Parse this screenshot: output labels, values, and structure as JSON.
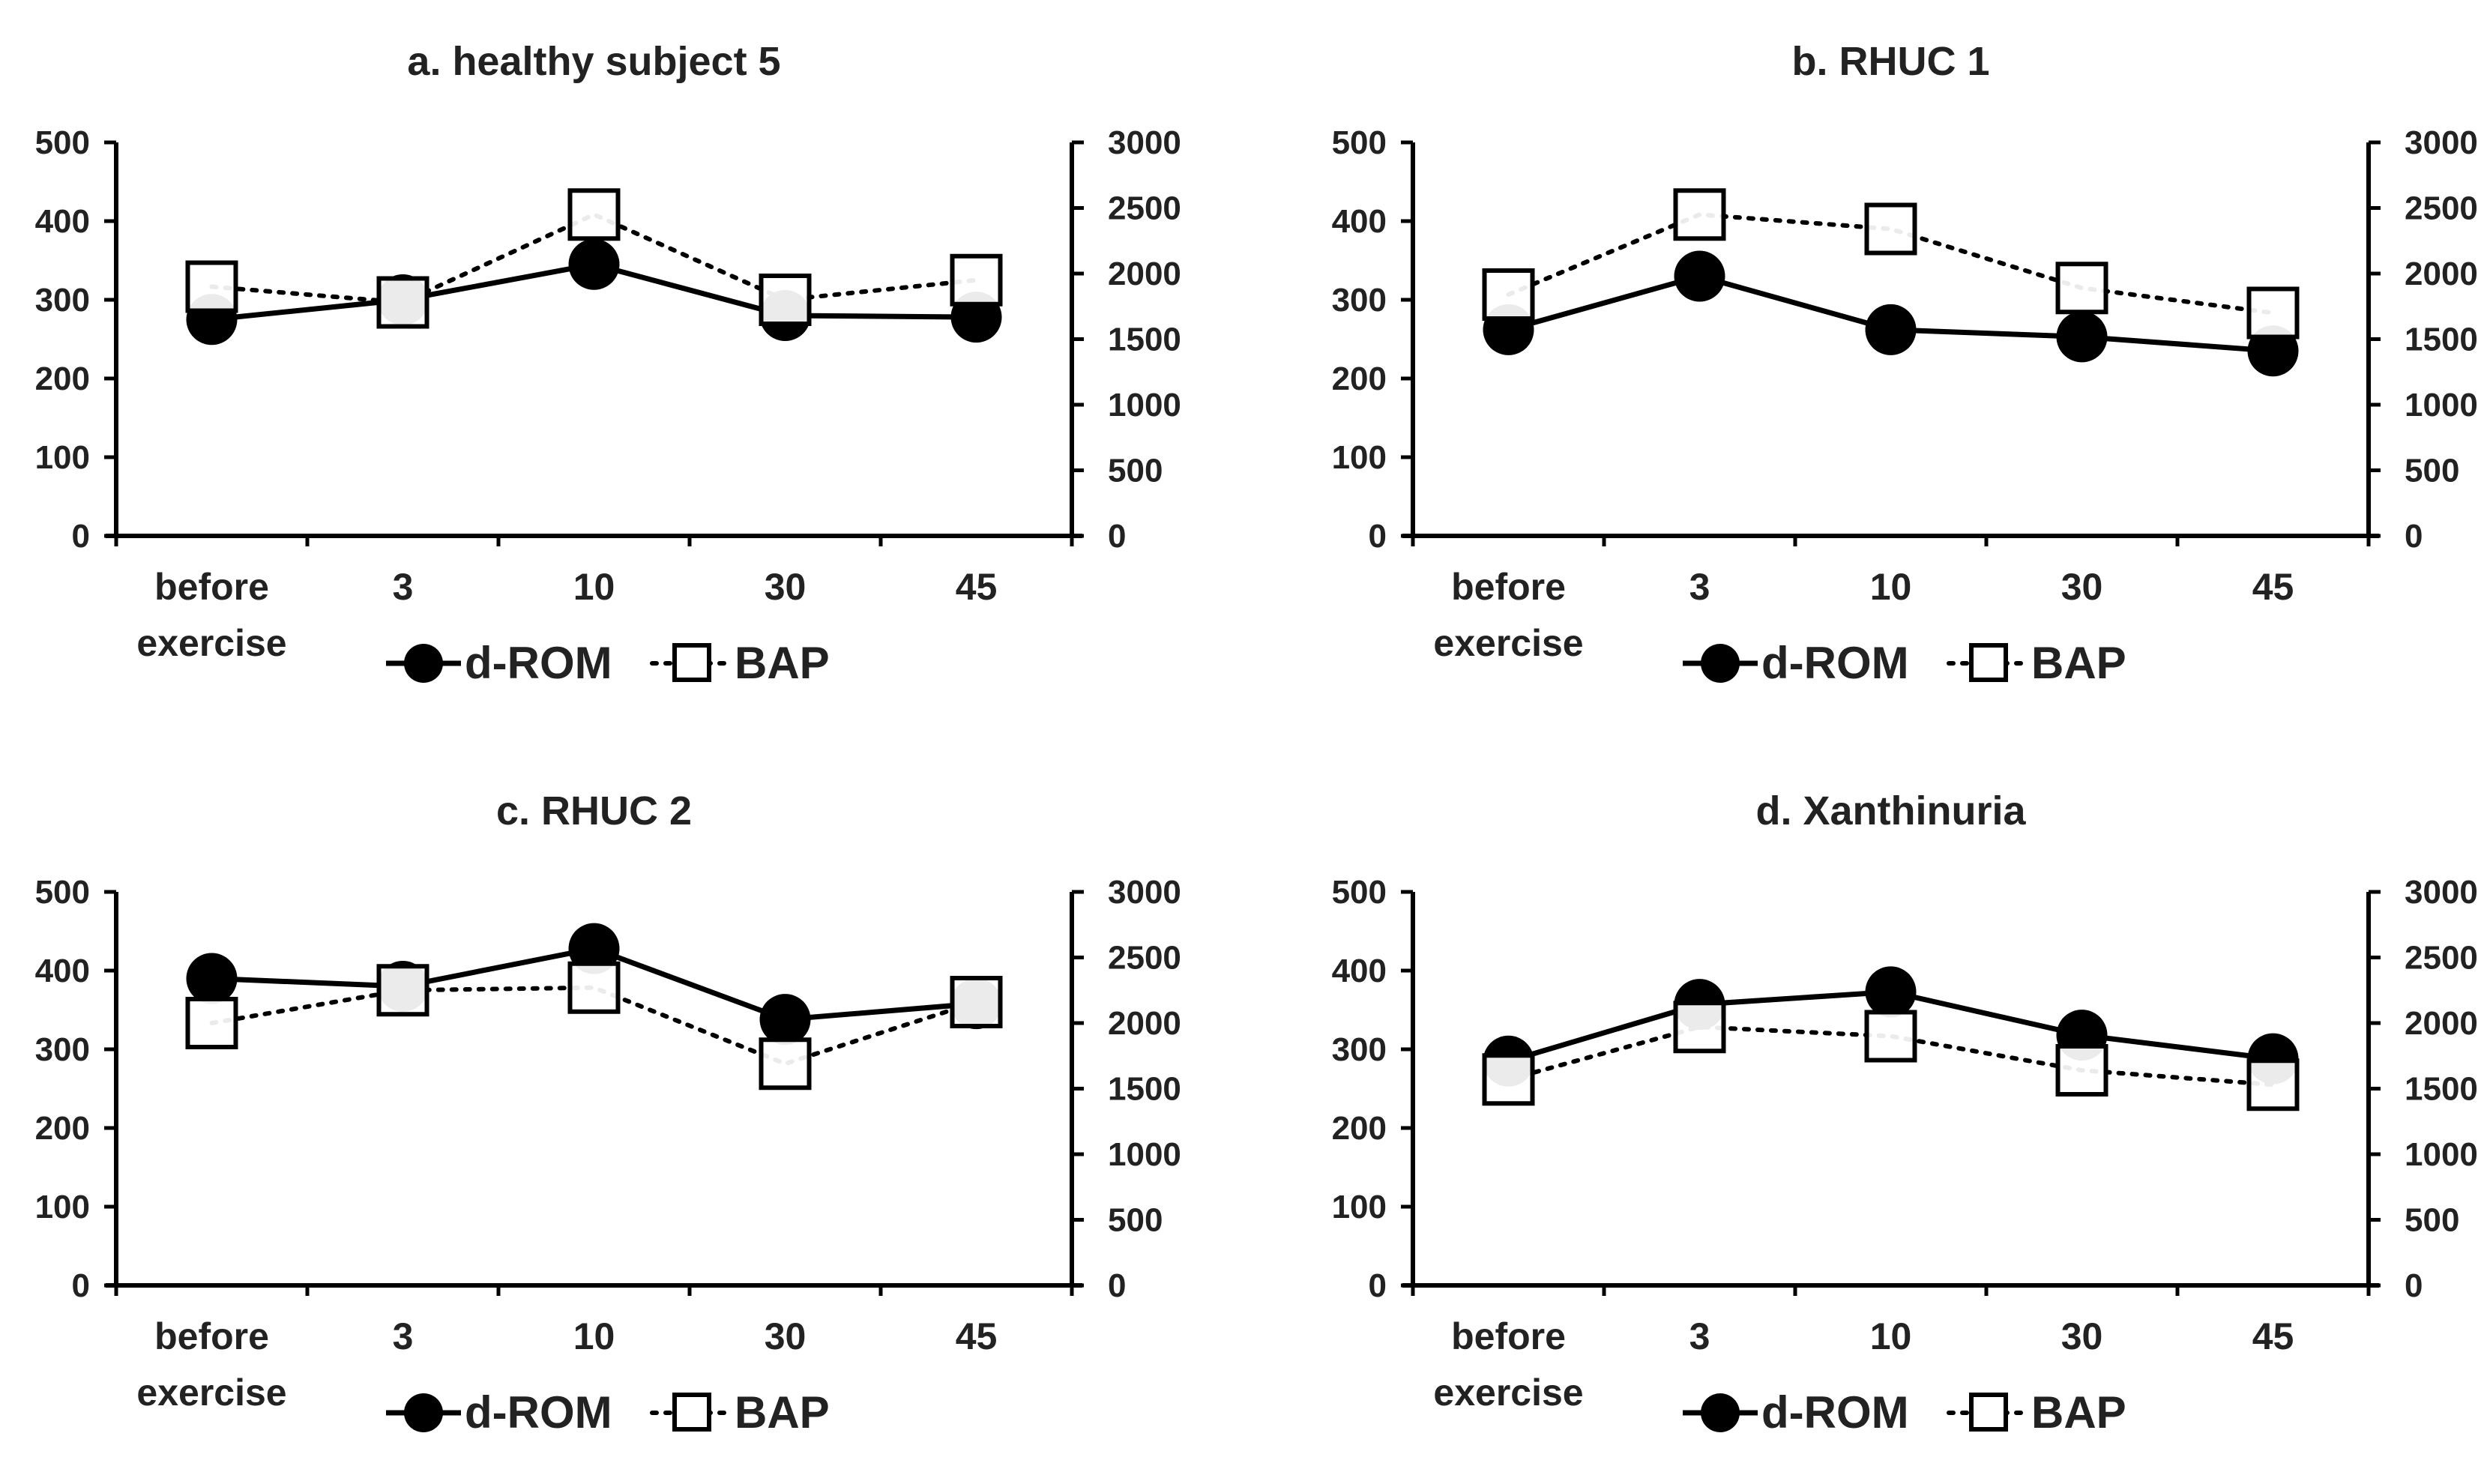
{
  "chart_data": [
    {
      "type": "line",
      "title": "a. healthy subject 5",
      "categories": [
        "before\nexercise",
        "3",
        "10",
        "30",
        "45"
      ],
      "series": [
        {
          "name": "d-ROM",
          "axis": "left",
          "style": "solid",
          "marker": "filled-circle",
          "values": [
            275,
            300,
            345,
            280,
            278
          ]
        },
        {
          "name": "BAP",
          "axis": "right",
          "style": "dotted",
          "marker": "open-square",
          "values": [
            1900,
            1780,
            2450,
            1800,
            1950
          ]
        }
      ],
      "y_left": {
        "ylim": [
          0,
          500
        ],
        "ticks": [
          "0",
          "100",
          "200",
          "300",
          "400",
          "500"
        ]
      },
      "y_right": {
        "ylim": [
          0,
          3000
        ],
        "ticks": [
          "0",
          "500",
          "1000",
          "1500",
          "2000",
          "2500",
          "3000"
        ]
      },
      "legend": {
        "position": "bottom",
        "labels": [
          "d-ROM",
          "BAP"
        ]
      }
    },
    {
      "type": "line",
      "title": "b. RHUC 1",
      "categories": [
        "before\nexercise",
        "3",
        "10",
        "30",
        "45"
      ],
      "series": [
        {
          "name": "d-ROM",
          "axis": "left",
          "style": "solid",
          "marker": "filled-circle",
          "values": [
            262,
            330,
            262,
            253,
            235
          ]
        },
        {
          "name": "BAP",
          "axis": "right",
          "style": "dotted",
          "marker": "open-square",
          "values": [
            1840,
            2450,
            2340,
            1890,
            1700
          ]
        }
      ],
      "y_left": {
        "ylim": [
          0,
          500
        ],
        "ticks": [
          "0",
          "100",
          "200",
          "300",
          "400",
          "500"
        ]
      },
      "y_right": {
        "ylim": [
          0,
          3000
        ],
        "ticks": [
          "0",
          "500",
          "1000",
          "1500",
          "2000",
          "2500",
          "3000"
        ]
      },
      "legend": {
        "position": "bottom",
        "labels": [
          "d-ROM",
          "BAP"
        ]
      }
    },
    {
      "type": "line",
      "title": "c. RHUC 2",
      "categories": [
        "before\nexercise",
        "3",
        "10",
        "30",
        "45"
      ],
      "series": [
        {
          "name": "d-ROM",
          "axis": "left",
          "style": "solid",
          "marker": "filled-circle",
          "values": [
            390,
            380,
            428,
            338,
            358
          ]
        },
        {
          "name": "BAP",
          "axis": "right",
          "style": "dotted",
          "marker": "open-square",
          "values": [
            2000,
            2250,
            2270,
            1690,
            2160
          ]
        }
      ],
      "y_left": {
        "ylim": [
          0,
          500
        ],
        "ticks": [
          "0",
          "100",
          "200",
          "300",
          "400",
          "500"
        ]
      },
      "y_right": {
        "ylim": [
          0,
          3000
        ],
        "ticks": [
          "0",
          "500",
          "1000",
          "1500",
          "2000",
          "2500",
          "3000"
        ]
      },
      "legend": {
        "position": "bottom",
        "labels": [
          "d-ROM",
          "BAP"
        ]
      }
    },
    {
      "type": "line",
      "title": "d. Xanthinuria",
      "categories": [
        "before\nexercise",
        "3",
        "10",
        "30",
        "45"
      ],
      "series": [
        {
          "name": "d-ROM",
          "axis": "left",
          "style": "solid",
          "marker": "filled-circle",
          "values": [
            285,
            357,
            373,
            318,
            288
          ]
        },
        {
          "name": "BAP",
          "axis": "right",
          "style": "dotted",
          "marker": "open-square",
          "values": [
            1570,
            1970,
            1900,
            1640,
            1530
          ]
        }
      ],
      "y_left": {
        "ylim": [
          0,
          500
        ],
        "ticks": [
          "0",
          "100",
          "200",
          "300",
          "400",
          "500"
        ]
      },
      "y_right": {
        "ylim": [
          0,
          3000
        ],
        "ticks": [
          "0",
          "500",
          "1000",
          "1500",
          "2000",
          "2500",
          "3000"
        ]
      },
      "legend": {
        "position": "bottom",
        "labels": [
          "d-ROM",
          "BAP"
        ]
      }
    }
  ],
  "colors": {
    "line": "#000000",
    "square_fill": "#ffffff",
    "marker_fill": "#000000",
    "text": "#222222"
  }
}
